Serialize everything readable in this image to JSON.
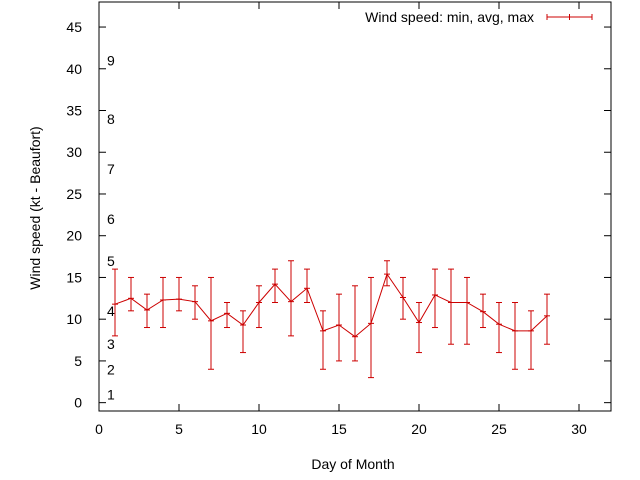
{
  "chart_data": {
    "type": "line",
    "xlabel": "Day of Month",
    "ylabel": "Wind speed (kt - Beaufort)",
    "xlim": [
      0,
      32
    ],
    "ylim": [
      -1,
      48
    ],
    "x_ticks": [
      0,
      5,
      10,
      15,
      20,
      25,
      30
    ],
    "y_ticks": [
      0,
      5,
      10,
      15,
      20,
      25,
      30,
      35,
      40,
      45
    ],
    "grid": false,
    "legend_position": "top-right",
    "beaufort_labels": [
      {
        "label": "1",
        "at": 1
      },
      {
        "label": "2",
        "at": 4
      },
      {
        "label": "3",
        "at": 7
      },
      {
        "label": "4",
        "at": 11
      },
      {
        "label": "5",
        "at": 17
      },
      {
        "label": "6",
        "at": 22
      },
      {
        "label": "7",
        "at": 28
      },
      {
        "label": "8",
        "at": 34
      },
      {
        "label": "9",
        "at": 41
      }
    ],
    "series": [
      {
        "name": "Wind speed: min, avg, max",
        "color": "#cc0000",
        "x": [
          1,
          2,
          3,
          4,
          5,
          6,
          7,
          8,
          9,
          10,
          11,
          12,
          13,
          14,
          15,
          16,
          17,
          18,
          19,
          20,
          21,
          22,
          23,
          24,
          25,
          26,
          27,
          28
        ],
        "avg": [
          11.8,
          12.5,
          11.1,
          12.3,
          12.4,
          12.1,
          9.8,
          10.7,
          9.3,
          12.0,
          14.2,
          12.1,
          13.7,
          8.6,
          9.3,
          7.9,
          9.5,
          15.4,
          12.6,
          9.6,
          12.9,
          12.0,
          12.0,
          10.9,
          9.4,
          8.6,
          8.6,
          10.4
        ],
        "min": [
          8,
          11,
          9,
          9,
          11,
          10,
          4,
          9,
          6,
          9,
          12,
          8,
          12,
          4,
          5,
          5,
          3,
          14,
          10,
          6,
          9,
          7,
          7,
          9,
          6,
          4,
          4,
          7
        ],
        "max": [
          16,
          15,
          13,
          15,
          15,
          14,
          15,
          12,
          11,
          14,
          16,
          17,
          16,
          11,
          13,
          14,
          15,
          17,
          15,
          12,
          16,
          16,
          15,
          13,
          12,
          12,
          11,
          13
        ]
      }
    ]
  }
}
